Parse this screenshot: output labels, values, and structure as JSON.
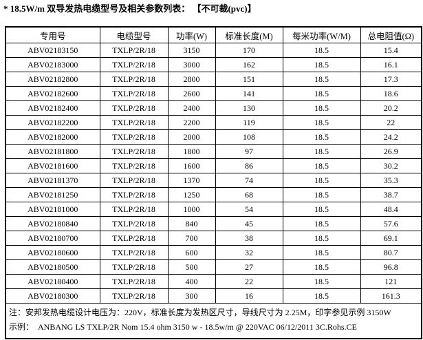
{
  "title": "* 18.5W/m 双导发热电缆型号及相关参数列表： 【不可裁(pvc)】",
  "table": {
    "headers": [
      "专用号",
      "电缆型号",
      "功率(W)",
      "标准长度(M)",
      "每米功率(W/M)",
      "总电阻值(Ω)"
    ],
    "rows": [
      [
        "ABV02183150",
        "TXLP/2R/18",
        "3150",
        "170",
        "18.5",
        "15.4"
      ],
      [
        "ABV02183000",
        "TXLP/2R/18",
        "3000",
        "162",
        "18.5",
        "16.1"
      ],
      [
        "ABV02182800",
        "TXLP/2R/18",
        "2800",
        "151",
        "18.5",
        "17.3"
      ],
      [
        "ABV02182600",
        "TXLP/2R/18",
        "2600",
        "141",
        "18.5",
        "18.6"
      ],
      [
        "ABV02182400",
        "TXLP/2R/18",
        "2400",
        "130",
        "18.5",
        "20.2"
      ],
      [
        "ABV02182200",
        "TXLP/2R/18",
        "2200",
        "119",
        "18.5",
        "22"
      ],
      [
        "ABV02182000",
        "TXLP/2R/18",
        "2000",
        "108",
        "18.5",
        "24.2"
      ],
      [
        "ABV02181800",
        "TXLP/2R/18",
        "1800",
        "97",
        "18.5",
        "26.9"
      ],
      [
        "ABV02181600",
        "TXLP/2R/18",
        "1600",
        "86",
        "18.5",
        "30.2"
      ],
      [
        "ABV02181370",
        "TXLP/2R/18",
        "1370",
        "74",
        "18.5",
        "35.3"
      ],
      [
        "ABV02181250",
        "TXLP/2R/18",
        "1250",
        "68",
        "18.5",
        "38.7"
      ],
      [
        "ABV02181000",
        "TXLP/2R/18",
        "1000",
        "54",
        "18.5",
        "48.4"
      ],
      [
        "ABV02180840",
        "TXLP/2R/18",
        "840",
        "45",
        "18.5",
        "57.6"
      ],
      [
        "ABV02180700",
        "TXLP/2R/18",
        "700",
        "38",
        "18.5",
        "69.1"
      ],
      [
        "ABV02180600",
        "TXLP/2R/18",
        "600",
        "32",
        "18.5",
        "80.7"
      ],
      [
        "ABV02180500",
        "TXLP/2R/18",
        "500",
        "27",
        "18.5",
        "96.8"
      ],
      [
        "ABV02180400",
        "TXLP/2R/18",
        "400",
        "22",
        "18.5",
        "121"
      ],
      [
        "ABV02180300",
        "TXLP/2R/18",
        "300",
        "16",
        "18.5",
        "161.3"
      ]
    ]
  },
  "notes": [
    "注：安邦发热电缆设计电压为：220V，标准长度为发热区尺寸，导线尺寸为 2.25M，印字参见示例 3150W",
    "示例：  ANBANG LS TXLP/2R Nom 15.4 ohm 3150 w - 18.5w/m @ 220VAC 06/12/2011 3C.Rohs.CE"
  ],
  "colors": {
    "text": "#000000",
    "border": "#000000",
    "background": "#ffffff"
  }
}
